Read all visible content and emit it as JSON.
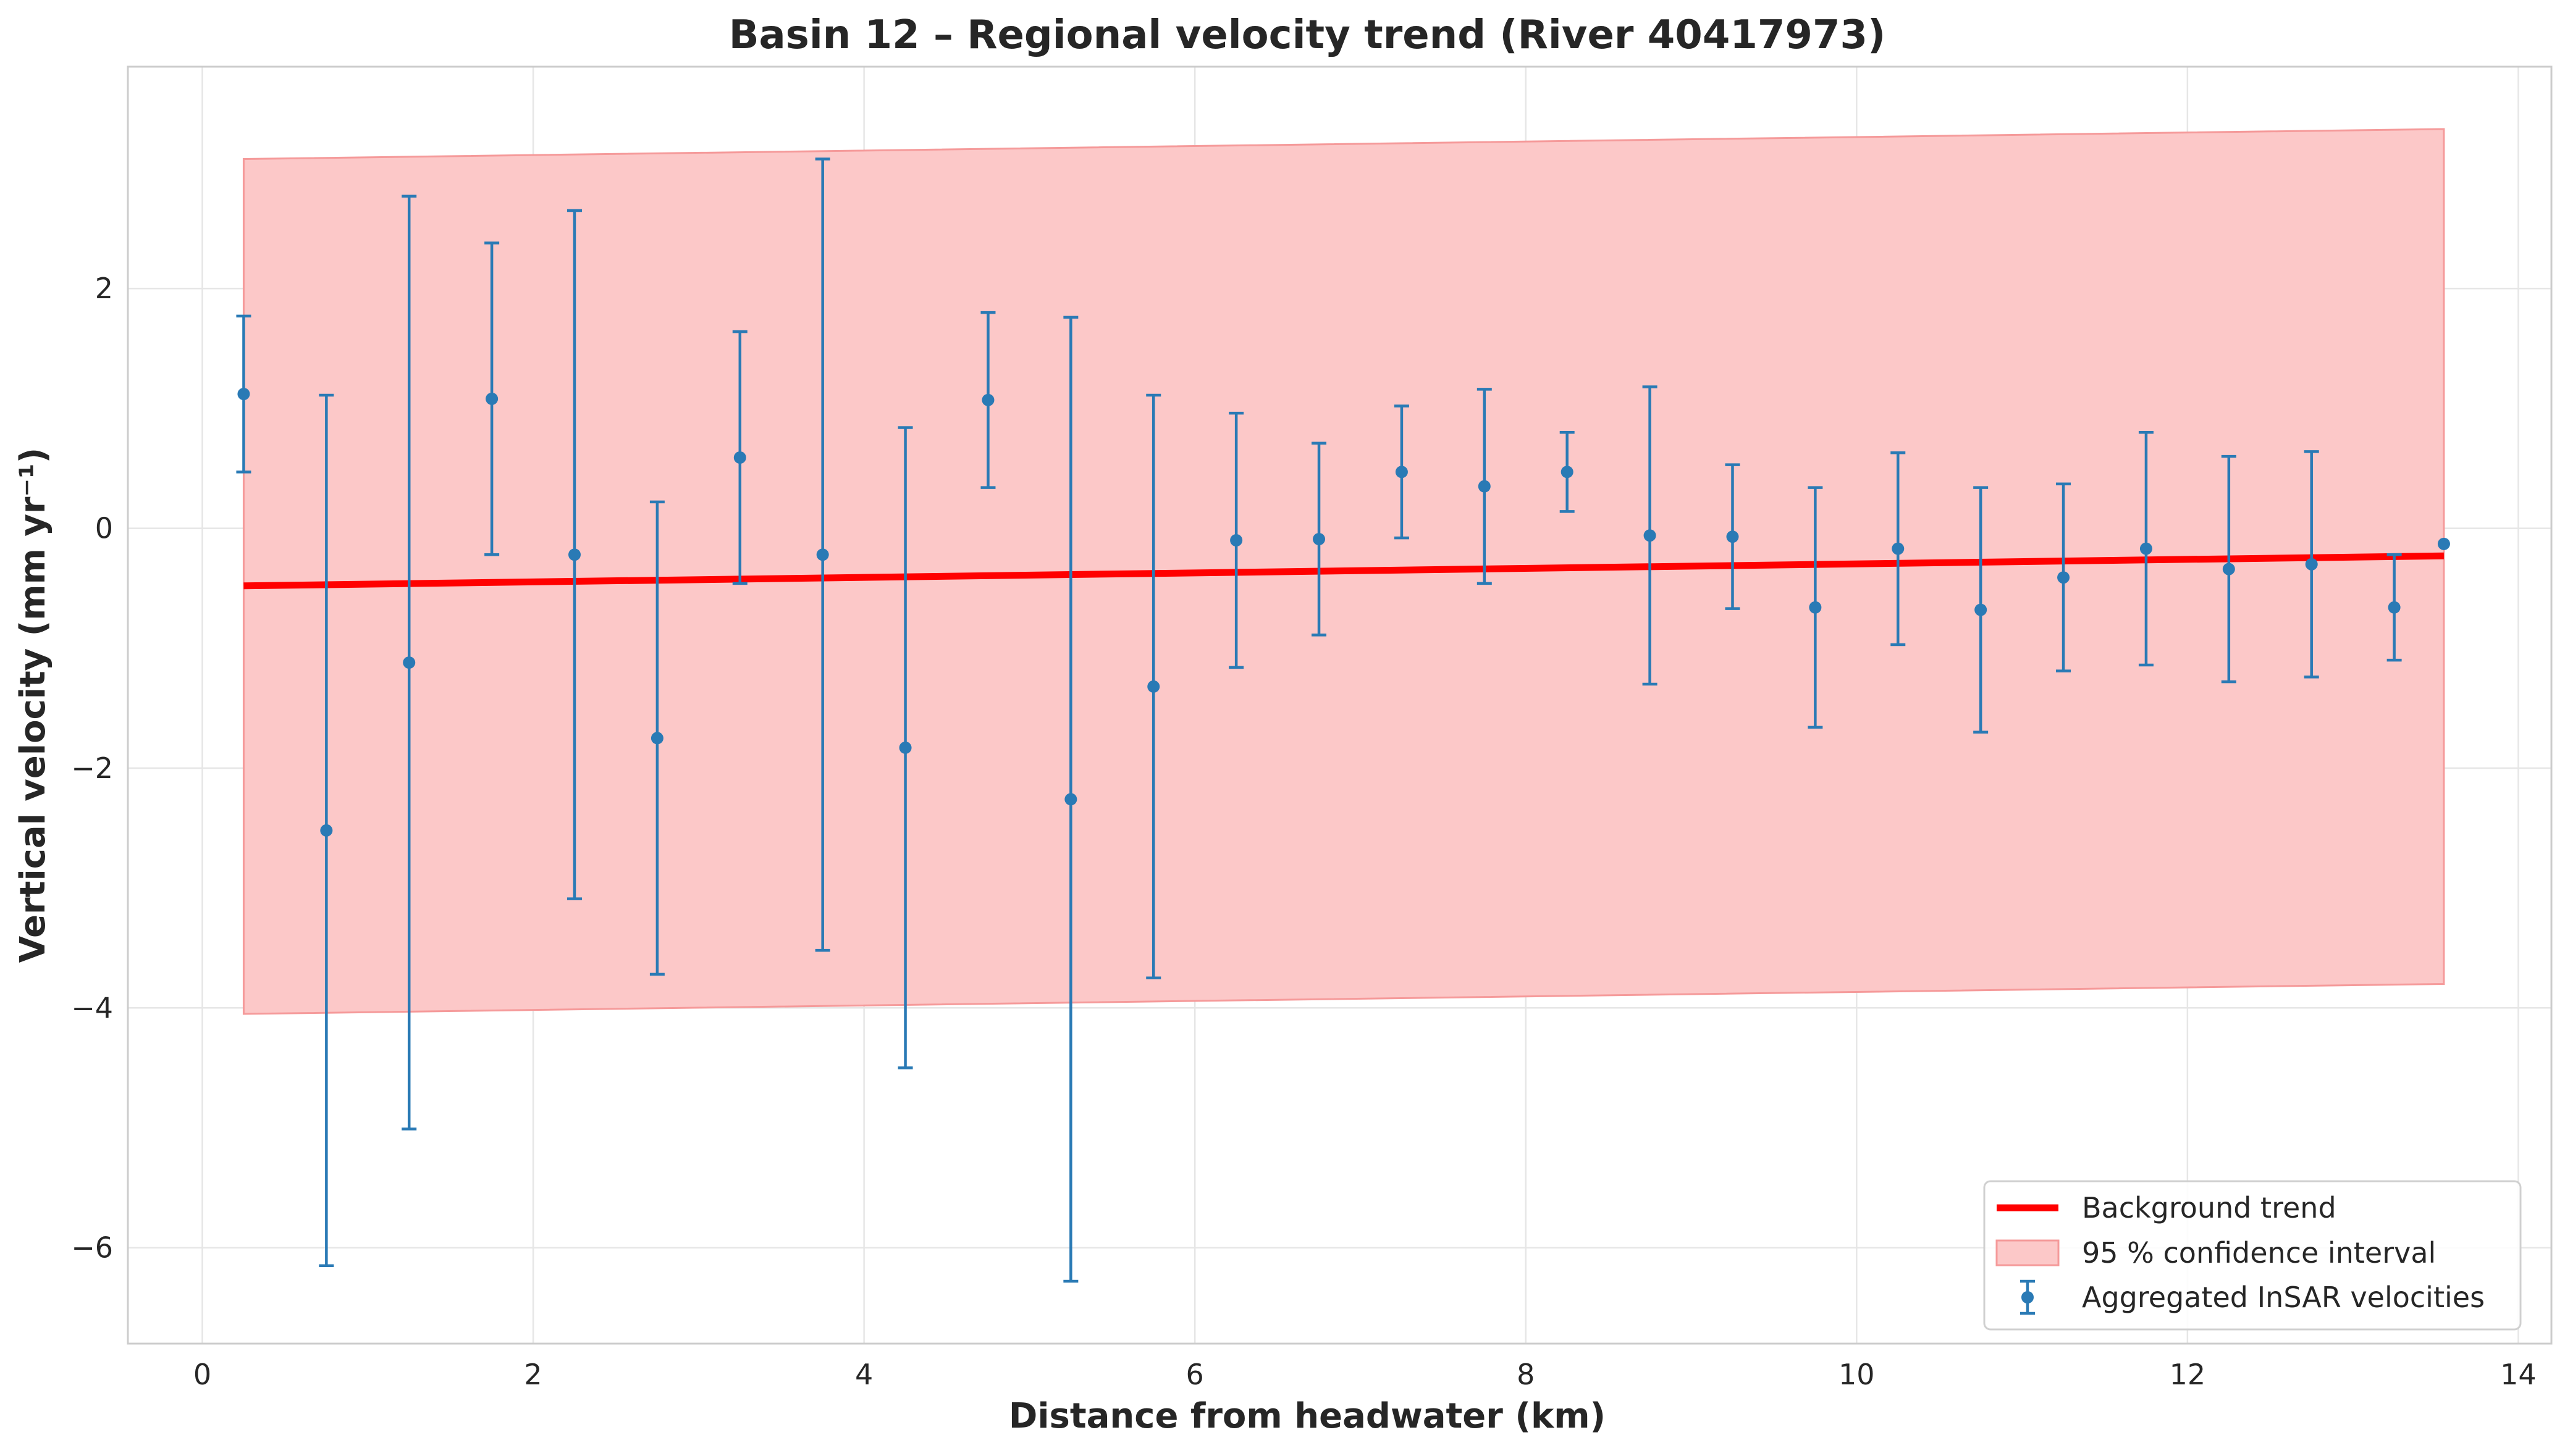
{
  "chart_data": {
    "type": "scatter",
    "title": "Basin 12 – Regional velocity trend (River 40417973)",
    "xlabel": "Distance from headwater (km)",
    "ylabel": "Vertical velocity (mm yr⁻¹)",
    "xlim": [
      -0.45,
      14.2
    ],
    "ylim": [
      -6.8,
      3.85
    ],
    "x_ticks": [
      0,
      2,
      4,
      6,
      8,
      10,
      12,
      14
    ],
    "x_tick_labels": [
      "0",
      "2",
      "4",
      "6",
      "8",
      "10",
      "12",
      "14"
    ],
    "y_ticks": [
      -6,
      -4,
      -2,
      0,
      2
    ],
    "y_tick_labels": [
      "−6",
      "−4",
      "−2",
      "0",
      "2"
    ],
    "grid": true,
    "legend_position": "lower-right",
    "colors": {
      "trend": "#ff0000",
      "band_fill": "#fcc8c8",
      "band_edge": "#f59a9a",
      "points": "#2a7ab5",
      "grid": "#e6e6e6",
      "frame": "#cccccc"
    },
    "trend": {
      "name": "Background trend",
      "x": [
        0.25,
        13.55
      ],
      "y": [
        -0.48,
        -0.23
      ]
    },
    "confidence_band": {
      "name": "95 % confidence interval",
      "x": [
        0.25,
        13.55
      ],
      "lower": [
        -4.05,
        -3.8
      ],
      "upper": [
        3.08,
        3.33
      ]
    },
    "points": {
      "name": "Aggregated InSAR velocities",
      "x": [
        0.25,
        0.75,
        1.25,
        1.75,
        2.25,
        2.75,
        3.25,
        3.75,
        4.25,
        4.75,
        5.25,
        5.75,
        6.25,
        6.75,
        7.25,
        7.75,
        8.25,
        8.75,
        9.25,
        9.75,
        10.25,
        10.75,
        11.25,
        11.75,
        12.25,
        12.75,
        13.25,
        13.55
      ],
      "y": [
        1.12,
        -2.52,
        -1.12,
        1.08,
        -0.22,
        -1.75,
        0.59,
        -0.22,
        -1.83,
        1.07,
        -2.26,
        -1.32,
        -0.1,
        -0.09,
        0.47,
        0.35,
        0.47,
        -0.06,
        -0.07,
        -0.66,
        -0.17,
        -0.68,
        -0.41,
        -0.17,
        -0.34,
        -0.3,
        -0.66,
        -0.13
      ],
      "y_err": [
        0.65,
        3.63,
        3.89,
        1.3,
        2.87,
        1.97,
        1.05,
        3.3,
        2.67,
        0.73,
        4.02,
        2.43,
        1.06,
        0.8,
        0.55,
        0.81,
        0.33,
        1.24,
        0.6,
        1.0,
        0.8,
        1.02,
        0.78,
        0.97,
        0.94,
        0.94,
        0.44,
        0.0
      ]
    }
  }
}
